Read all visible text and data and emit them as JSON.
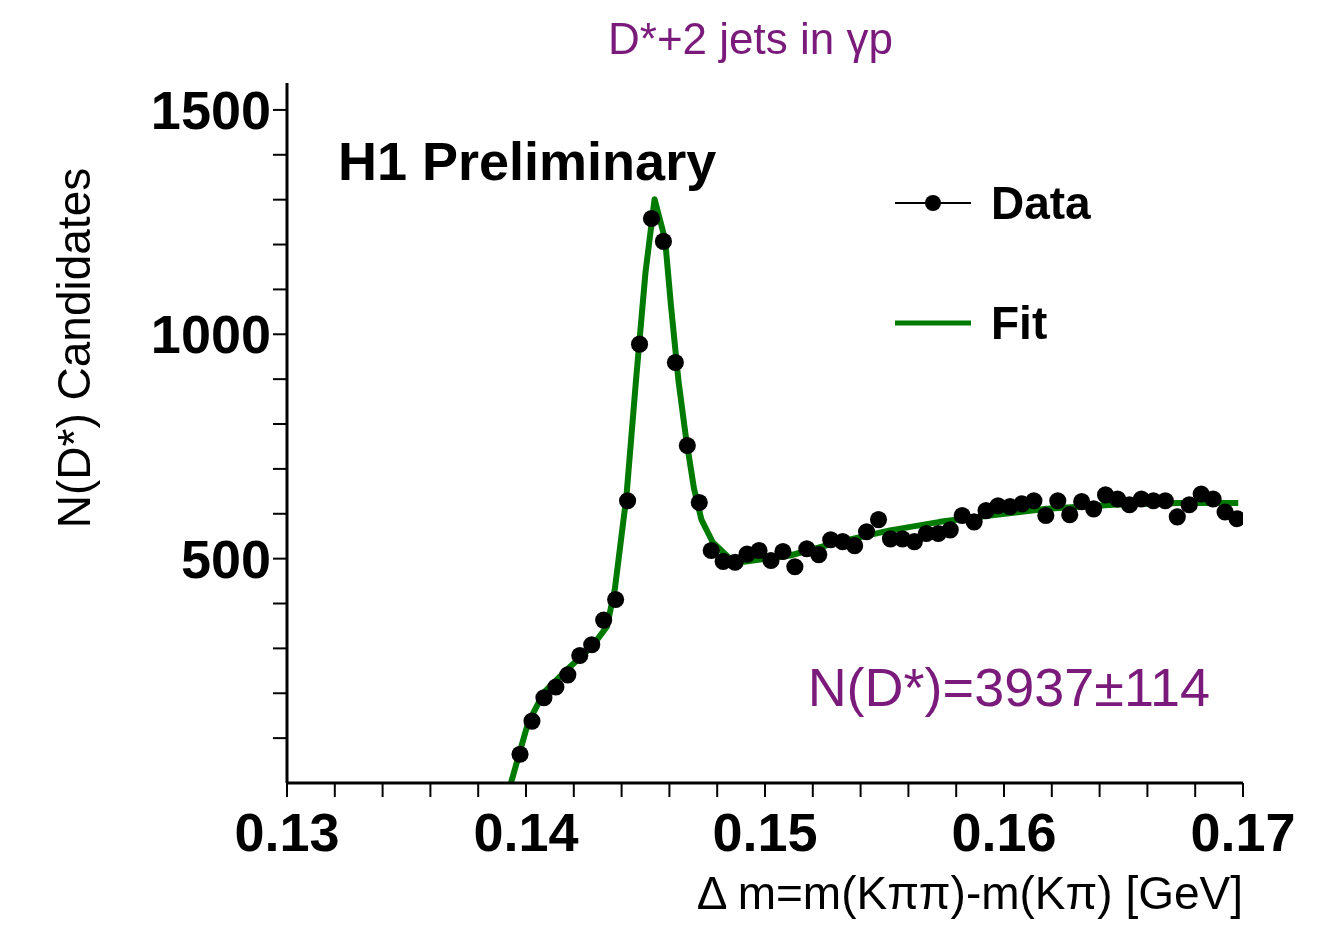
{
  "chart_data": {
    "type": "scatter",
    "title": "D*+2 jets in γp",
    "xlabel": "Δ m=m(Kππ)-m(Kπ) [GeV]",
    "ylabel": "N(D*) Candidates",
    "annotations": [
      "H1 Preliminary",
      "N(D*)=3937±114"
    ],
    "xlim": [
      0.13,
      0.17
    ],
    "xticks": [
      0.13,
      {
        "value": 0.132,
        "label": null
      },
      {
        "value": 0.134,
        "label": null
      },
      {
        "value": 0.136,
        "label": null
      },
      {
        "value": 0.138,
        "label": null
      },
      0.14,
      {
        "value": 0.142,
        "label": null
      },
      {
        "value": 0.144,
        "label": null
      },
      {
        "value": 0.146,
        "label": null
      },
      {
        "value": 0.148,
        "label": null
      },
      0.15,
      {
        "value": 0.152,
        "label": null
      },
      {
        "value": 0.154,
        "label": null
      },
      {
        "value": 0.156,
        "label": null
      },
      {
        "value": 0.158,
        "label": null
      },
      0.16,
      {
        "value": 0.162,
        "label": null
      },
      {
        "value": 0.164,
        "label": null
      },
      {
        "value": 0.166,
        "label": null
      },
      {
        "value": 0.168,
        "label": null
      },
      0.17
    ],
    "ylim": [
      0,
      1560
    ],
    "yticks": [
      {
        "value": 100,
        "label": null
      },
      {
        "value": 200,
        "label": null
      },
      {
        "value": 300,
        "label": null
      },
      {
        "value": 400,
        "label": null
      },
      500,
      {
        "value": 600,
        "label": null
      },
      {
        "value": 700,
        "label": null
      },
      {
        "value": 800,
        "label": null
      },
      {
        "value": 900,
        "label": null
      },
      1000,
      {
        "value": 1100,
        "label": null
      },
      {
        "value": 1200,
        "label": null
      },
      {
        "value": 1300,
        "label": null
      },
      {
        "value": 1400,
        "label": null
      },
      1500
    ],
    "legend": "top right",
    "grid": false,
    "series": [
      {
        "name": "Data",
        "color": "#000000",
        "marker": "circle",
        "x": [
          0.13975,
          0.14025,
          0.14075,
          0.14125,
          0.14175,
          0.14225,
          0.14275,
          0.14325,
          0.14375,
          0.14425,
          0.14475,
          0.14525,
          0.14575,
          0.14625,
          0.14675,
          0.14725,
          0.14775,
          0.14825,
          0.14875,
          0.14925,
          0.14975,
          0.15025,
          0.15075,
          0.15125,
          0.15175,
          0.15225,
          0.15275,
          0.15325,
          0.15375,
          0.15425,
          0.15475,
          0.15525,
          0.15575,
          0.15625,
          0.15675,
          0.15725,
          0.15775,
          0.15825,
          0.15875,
          0.15925,
          0.15975,
          0.16025,
          0.16075,
          0.16125,
          0.16175,
          0.16225,
          0.16275,
          0.16325,
          0.16375,
          0.16425,
          0.16475,
          0.16525,
          0.16575,
          0.16625,
          0.16675,
          0.16725,
          0.16775,
          0.16825,
          0.16875,
          0.16925,
          0.16975
        ],
        "values": [
          64,
          138,
          190,
          214,
          241,
          284,
          308,
          363,
          409,
          629,
          978,
          1258,
          1207,
          937,
          752,
          625,
          518,
          494,
          492,
          510,
          518,
          496,
          516,
          482,
          522,
          509,
          542,
          538,
          529,
          560,
          587,
          544,
          544,
          538,
          556,
          556,
          564,
          596,
          582,
          607,
          618,
          616,
          622,
          629,
          596,
          629,
          598,
          627,
          611,
          642,
          633,
          620,
          633,
          629,
          629,
          593,
          620,
          644,
          633,
          604,
          589
        ]
      },
      {
        "name": "Fit",
        "type": "line",
        "color": "#007a00",
        "line_style": "solid",
        "x": [
          0.13937,
          0.14008,
          0.14075,
          0.14172,
          0.14276,
          0.14339,
          0.14372,
          0.1442,
          0.1446,
          0.145,
          0.14538,
          0.14582,
          0.14606,
          0.14638,
          0.1467,
          0.14703,
          0.14734,
          0.14782,
          0.14847,
          0.14912,
          0.15105,
          0.15314,
          0.15523,
          0.15732,
          0.15941,
          0.16178,
          0.16457,
          0.16736,
          0.1698
        ],
        "values": [
          0,
          133,
          202,
          253,
          304,
          349,
          433,
          638,
          896,
          1138,
          1301,
          1211,
          1067,
          896,
          767,
          656,
          587,
          536,
          503,
          493,
          507,
          538,
          563,
          582,
          596,
          611,
          620,
          624,
          624
        ]
      }
    ]
  }
}
